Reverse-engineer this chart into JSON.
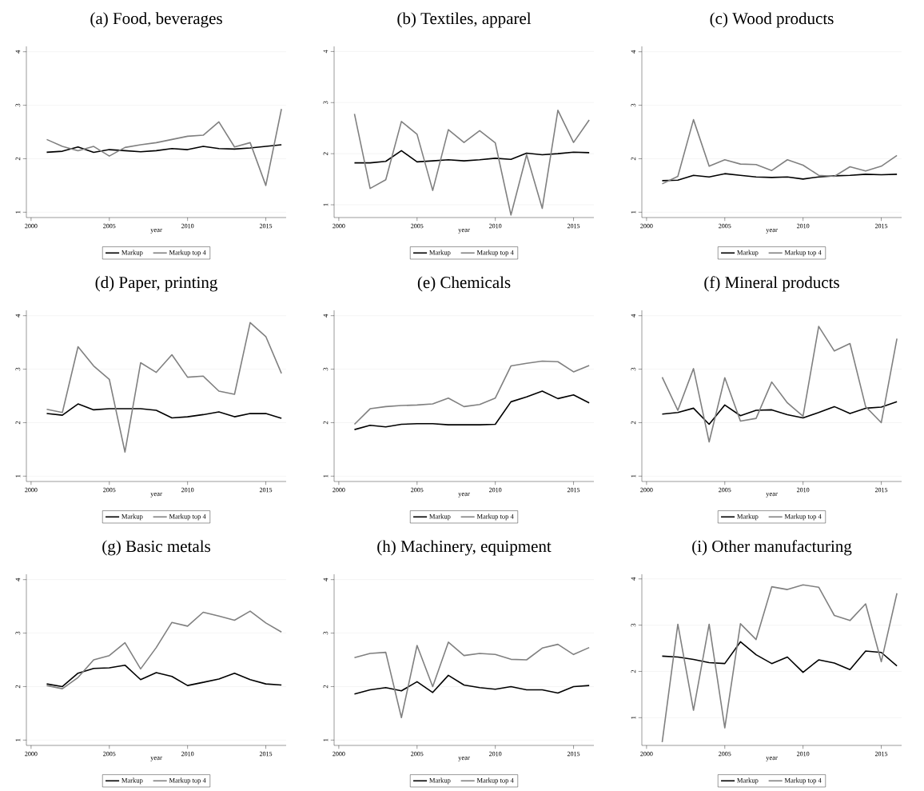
{
  "chart_data": [
    {
      "type": "line",
      "title": "(a) Food, beverages",
      "xlabel": "year",
      "x": [
        2001,
        2002,
        2003,
        2004,
        2005,
        2006,
        2007,
        2008,
        2009,
        2010,
        2011,
        2012,
        2013,
        2014,
        2015,
        2016
      ],
      "xlim": [
        1999.7,
        2016.3
      ],
      "ylim": [
        0.9,
        4.1
      ],
      "xticks": [
        2000,
        2005,
        2010,
        2015
      ],
      "yticks": [
        1,
        2,
        3,
        4
      ],
      "grid": "y",
      "legend": "bottom",
      "series": [
        {
          "name": "Markup",
          "color": "#000000",
          "values": [
            2.12,
            2.14,
            2.22,
            2.12,
            2.17,
            2.15,
            2.13,
            2.15,
            2.19,
            2.17,
            2.23,
            2.19,
            2.18,
            2.2,
            2.23,
            2.26
          ]
        },
        {
          "name": "Markup top 4",
          "color": "#808080",
          "values": [
            2.36,
            2.23,
            2.15,
            2.23,
            2.05,
            2.21,
            2.26,
            2.3,
            2.36,
            2.42,
            2.44,
            2.69,
            2.22,
            2.3,
            1.5,
            2.93
          ]
        }
      ]
    },
    {
      "type": "line",
      "title": "(b) Textiles, apparel",
      "xlabel": "year",
      "x": [
        2001,
        2002,
        2003,
        2004,
        2005,
        2006,
        2007,
        2008,
        2009,
        2010,
        2011,
        2012,
        2013,
        2014,
        2015,
        2016
      ],
      "xlim": [
        1999.7,
        2016.3
      ],
      "ylim": [
        0.75,
        4.1
      ],
      "xticks": [
        2000,
        2005,
        2010,
        2015
      ],
      "yticks": [
        1,
        2,
        3,
        4
      ],
      "grid": "y",
      "legend": "bottom",
      "series": [
        {
          "name": "Markup",
          "color": "#000000",
          "values": [
            1.82,
            1.82,
            1.85,
            2.06,
            1.84,
            1.86,
            1.88,
            1.86,
            1.88,
            1.91,
            1.89,
            2.01,
            1.98,
            2.0,
            2.03,
            2.02
          ]
        },
        {
          "name": "Markup top 4",
          "color": "#808080",
          "values": [
            2.78,
            1.32,
            1.49,
            2.63,
            2.38,
            1.28,
            2.47,
            2.22,
            2.45,
            2.21,
            0.8,
            1.98,
            0.93,
            2.85,
            2.22,
            2.66
          ]
        }
      ]
    },
    {
      "type": "line",
      "title": "(c) Wood products",
      "xlabel": "year",
      "x": [
        2001,
        2002,
        2003,
        2004,
        2005,
        2006,
        2007,
        2008,
        2009,
        2010,
        2011,
        2012,
        2013,
        2014,
        2015,
        2016
      ],
      "xlim": [
        1999.7,
        2016.3
      ],
      "ylim": [
        0.9,
        4.1
      ],
      "xticks": [
        2000,
        2005,
        2010,
        2015
      ],
      "yticks": [
        1,
        2,
        3,
        4
      ],
      "grid": "y",
      "legend": "bottom",
      "series": [
        {
          "name": "Markup",
          "color": "#000000",
          "values": [
            1.59,
            1.6,
            1.69,
            1.66,
            1.72,
            1.69,
            1.66,
            1.65,
            1.66,
            1.62,
            1.66,
            1.68,
            1.69,
            1.71,
            1.7,
            1.71
          ]
        },
        {
          "name": "Markup top 4",
          "color": "#808080",
          "values": [
            1.53,
            1.67,
            2.73,
            1.86,
            1.98,
            1.9,
            1.89,
            1.78,
            1.98,
            1.88,
            1.69,
            1.67,
            1.85,
            1.77,
            1.86,
            2.06
          ]
        }
      ]
    },
    {
      "type": "line",
      "title": "(d) Paper, printing",
      "xlabel": "year",
      "x": [
        2001,
        2002,
        2003,
        2004,
        2005,
        2006,
        2007,
        2008,
        2009,
        2010,
        2011,
        2012,
        2013,
        2014,
        2015,
        2016
      ],
      "xlim": [
        1999.7,
        2016.3
      ],
      "ylim": [
        0.9,
        4.1
      ],
      "xticks": [
        2000,
        2005,
        2010,
        2015
      ],
      "yticks": [
        1,
        2,
        3,
        4
      ],
      "grid": "y",
      "legend": "bottom",
      "series": [
        {
          "name": "Markup",
          "color": "#000000",
          "values": [
            2.17,
            2.14,
            2.35,
            2.24,
            2.26,
            2.26,
            2.26,
            2.23,
            2.09,
            2.11,
            2.15,
            2.2,
            2.11,
            2.17,
            2.17,
            2.08
          ]
        },
        {
          "name": "Markup top 4",
          "color": "#808080",
          "values": [
            2.25,
            2.19,
            3.42,
            3.06,
            2.81,
            1.45,
            3.12,
            2.94,
            3.27,
            2.85,
            2.87,
            2.59,
            2.53,
            3.87,
            3.61,
            2.92
          ]
        }
      ]
    },
    {
      "type": "line",
      "title": "(e) Chemicals",
      "xlabel": "year",
      "x": [
        2001,
        2002,
        2003,
        2004,
        2005,
        2006,
        2007,
        2008,
        2009,
        2010,
        2011,
        2012,
        2013,
        2014,
        2015,
        2016
      ],
      "xlim": [
        1999.7,
        2016.3
      ],
      "ylim": [
        0.9,
        4.1
      ],
      "xticks": [
        2000,
        2005,
        2010,
        2015
      ],
      "yticks": [
        1,
        2,
        3,
        4
      ],
      "grid": "y",
      "legend": "bottom",
      "series": [
        {
          "name": "Markup",
          "color": "#000000",
          "values": [
            1.87,
            1.95,
            1.92,
            1.97,
            1.98,
            1.98,
            1.96,
            1.96,
            1.96,
            1.97,
            2.39,
            2.48,
            2.59,
            2.45,
            2.52,
            2.37
          ]
        },
        {
          "name": "Markup top 4",
          "color": "#808080",
          "values": [
            1.97,
            2.26,
            2.3,
            2.32,
            2.33,
            2.35,
            2.46,
            2.3,
            2.34,
            2.46,
            3.06,
            3.11,
            3.15,
            3.14,
            2.95,
            3.07
          ]
        }
      ]
    },
    {
      "type": "line",
      "title": "(f) Mineral products",
      "xlabel": "year",
      "x": [
        2001,
        2002,
        2003,
        2004,
        2005,
        2006,
        2007,
        2008,
        2009,
        2010,
        2011,
        2012,
        2013,
        2014,
        2015,
        2016
      ],
      "xlim": [
        1999.7,
        2016.3
      ],
      "ylim": [
        0.9,
        4.1
      ],
      "xticks": [
        2000,
        2005,
        2010,
        2015
      ],
      "yticks": [
        1,
        2,
        3,
        4
      ],
      "grid": "y",
      "legend": "bottom",
      "series": [
        {
          "name": "Markup",
          "color": "#000000",
          "values": [
            2.16,
            2.19,
            2.27,
            1.97,
            2.33,
            2.13,
            2.23,
            2.24,
            2.15,
            2.09,
            2.19,
            2.3,
            2.17,
            2.27,
            2.29,
            2.39
          ]
        },
        {
          "name": "Markup top 4",
          "color": "#808080",
          "values": [
            2.85,
            2.23,
            3.01,
            1.64,
            2.84,
            2.03,
            2.08,
            2.76,
            2.37,
            2.12,
            3.8,
            3.34,
            3.48,
            2.3,
            2.0,
            3.57
          ]
        }
      ]
    },
    {
      "type": "line",
      "title": "(g) Basic metals",
      "xlabel": "year",
      "x": [
        2001,
        2002,
        2003,
        2004,
        2005,
        2006,
        2007,
        2008,
        2009,
        2010,
        2011,
        2012,
        2013,
        2014,
        2015,
        2016
      ],
      "xlim": [
        1999.7,
        2016.3
      ],
      "ylim": [
        0.9,
        4.1
      ],
      "xticks": [
        2000,
        2005,
        2010,
        2015
      ],
      "yticks": [
        1,
        2,
        3,
        4
      ],
      "grid": "y",
      "legend": "bottom",
      "series": [
        {
          "name": "Markup",
          "color": "#000000",
          "values": [
            2.05,
            2.0,
            2.25,
            2.34,
            2.35,
            2.4,
            2.13,
            2.26,
            2.19,
            2.02,
            2.08,
            2.14,
            2.25,
            2.13,
            2.05,
            2.03
          ]
        },
        {
          "name": "Markup top 4",
          "color": "#808080",
          "values": [
            2.02,
            1.96,
            2.17,
            2.5,
            2.58,
            2.82,
            2.33,
            2.73,
            3.2,
            3.13,
            3.39,
            3.32,
            3.24,
            3.41,
            3.19,
            3.02
          ]
        }
      ]
    },
    {
      "type": "line",
      "title": "(h) Machinery, equipment",
      "xlabel": "year",
      "x": [
        2001,
        2002,
        2003,
        2004,
        2005,
        2006,
        2007,
        2008,
        2009,
        2010,
        2011,
        2012,
        2013,
        2014,
        2015,
        2016
      ],
      "xlim": [
        1999.7,
        2016.3
      ],
      "ylim": [
        0.9,
        4.1
      ],
      "xticks": [
        2000,
        2005,
        2010,
        2015
      ],
      "yticks": [
        1,
        2,
        3,
        4
      ],
      "grid": "y",
      "legend": "bottom",
      "series": [
        {
          "name": "Markup",
          "color": "#000000",
          "values": [
            1.86,
            1.94,
            1.98,
            1.92,
            2.09,
            1.89,
            2.21,
            2.03,
            1.98,
            1.95,
            2.0,
            1.94,
            1.94,
            1.88,
            2.0,
            2.02
          ]
        },
        {
          "name": "Markup top 4",
          "color": "#808080",
          "values": [
            2.54,
            2.62,
            2.64,
            1.42,
            2.77,
            2.0,
            2.83,
            2.58,
            2.62,
            2.6,
            2.51,
            2.5,
            2.72,
            2.79,
            2.6,
            2.73
          ]
        }
      ]
    },
    {
      "type": "line",
      "title": "(i) Other manufacturing",
      "xlabel": "year",
      "x": [
        2001,
        2002,
        2003,
        2004,
        2005,
        2006,
        2007,
        2008,
        2009,
        2010,
        2011,
        2012,
        2013,
        2014,
        2015,
        2016
      ],
      "xlim": [
        1999.7,
        2016.3
      ],
      "ylim": [
        0.4,
        4.1
      ],
      "xticks": [
        2000,
        2005,
        2010,
        2015
      ],
      "yticks": [
        1,
        2,
        3,
        4
      ],
      "grid": "y",
      "legend": "bottom",
      "series": [
        {
          "name": "Markup",
          "color": "#000000",
          "values": [
            2.33,
            2.31,
            2.26,
            2.19,
            2.17,
            2.64,
            2.36,
            2.17,
            2.31,
            1.98,
            2.25,
            2.18,
            2.04,
            2.44,
            2.41,
            2.12
          ]
        },
        {
          "name": "Markup top 4",
          "color": "#808080",
          "values": [
            0.47,
            3.02,
            1.16,
            3.02,
            0.78,
            3.03,
            2.69,
            3.83,
            3.77,
            3.87,
            3.82,
            3.21,
            3.1,
            3.46,
            2.21,
            3.69
          ]
        }
      ]
    }
  ]
}
